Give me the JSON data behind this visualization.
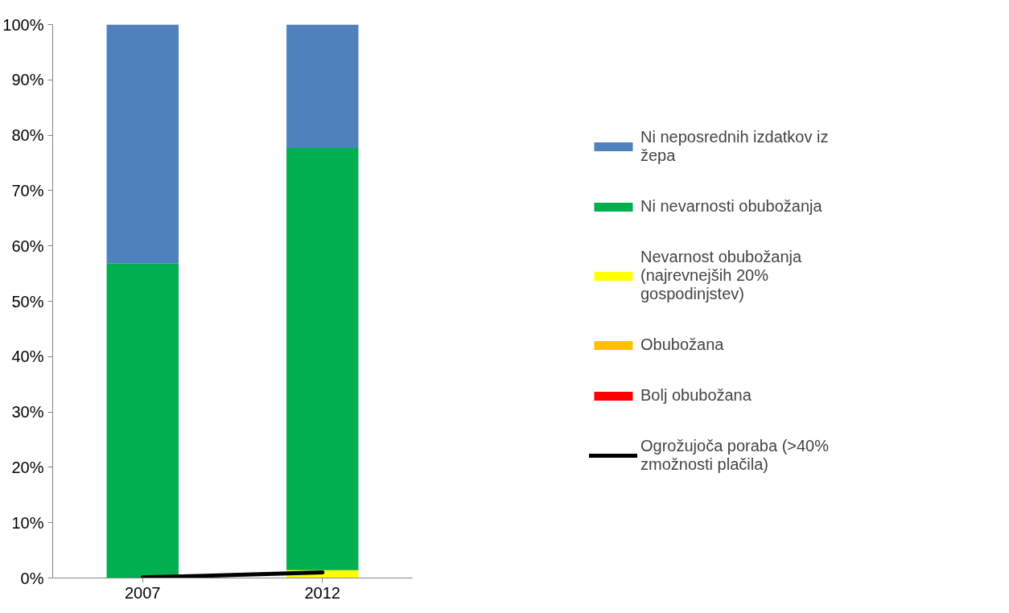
{
  "chart_data": {
    "type": "bar",
    "stacked": true,
    "categories": [
      "2007",
      "2012"
    ],
    "series": [
      {
        "name": "Bolj obubožana",
        "color": "#ff0000",
        "values": [
          0,
          0
        ]
      },
      {
        "name": "Obubožana",
        "color": "#ffc000",
        "values": [
          0,
          0
        ]
      },
      {
        "name": "Nevarnost obubožanja (najrevnejših 20% gospodinjstev)",
        "color": "#ffff00",
        "values": [
          0,
          1.4
        ]
      },
      {
        "name": "Ni nevarnosti obubožanja",
        "color": "#00b050",
        "values": [
          56.8,
          76.3
        ]
      },
      {
        "name": "Ni neposrednih izdatkov iz žepa",
        "color": "#4f81bd",
        "values": [
          43.2,
          22.3
        ]
      },
      {
        "name": "Ogrožujoča poraba (>40% zmožnosti plačila)",
        "color": "#000000",
        "type": "line",
        "values": [
          0.1,
          1.0
        ]
      }
    ],
    "ylim": [
      0,
      100
    ],
    "yticks": [
      {
        "value": 0,
        "label": "0%"
      },
      {
        "value": 10,
        "label": "10%"
      },
      {
        "value": 20,
        "label": "20%"
      },
      {
        "value": 30,
        "label": "30%"
      },
      {
        "value": 40,
        "label": "40%"
      },
      {
        "value": 50,
        "label": "50%"
      },
      {
        "value": 60,
        "label": "60%"
      },
      {
        "value": 70,
        "label": "70%"
      },
      {
        "value": 80,
        "label": "80%"
      },
      {
        "value": 90,
        "label": "90%"
      },
      {
        "value": 100,
        "label": "100%"
      }
    ],
    "grid": false,
    "legend": "right"
  }
}
